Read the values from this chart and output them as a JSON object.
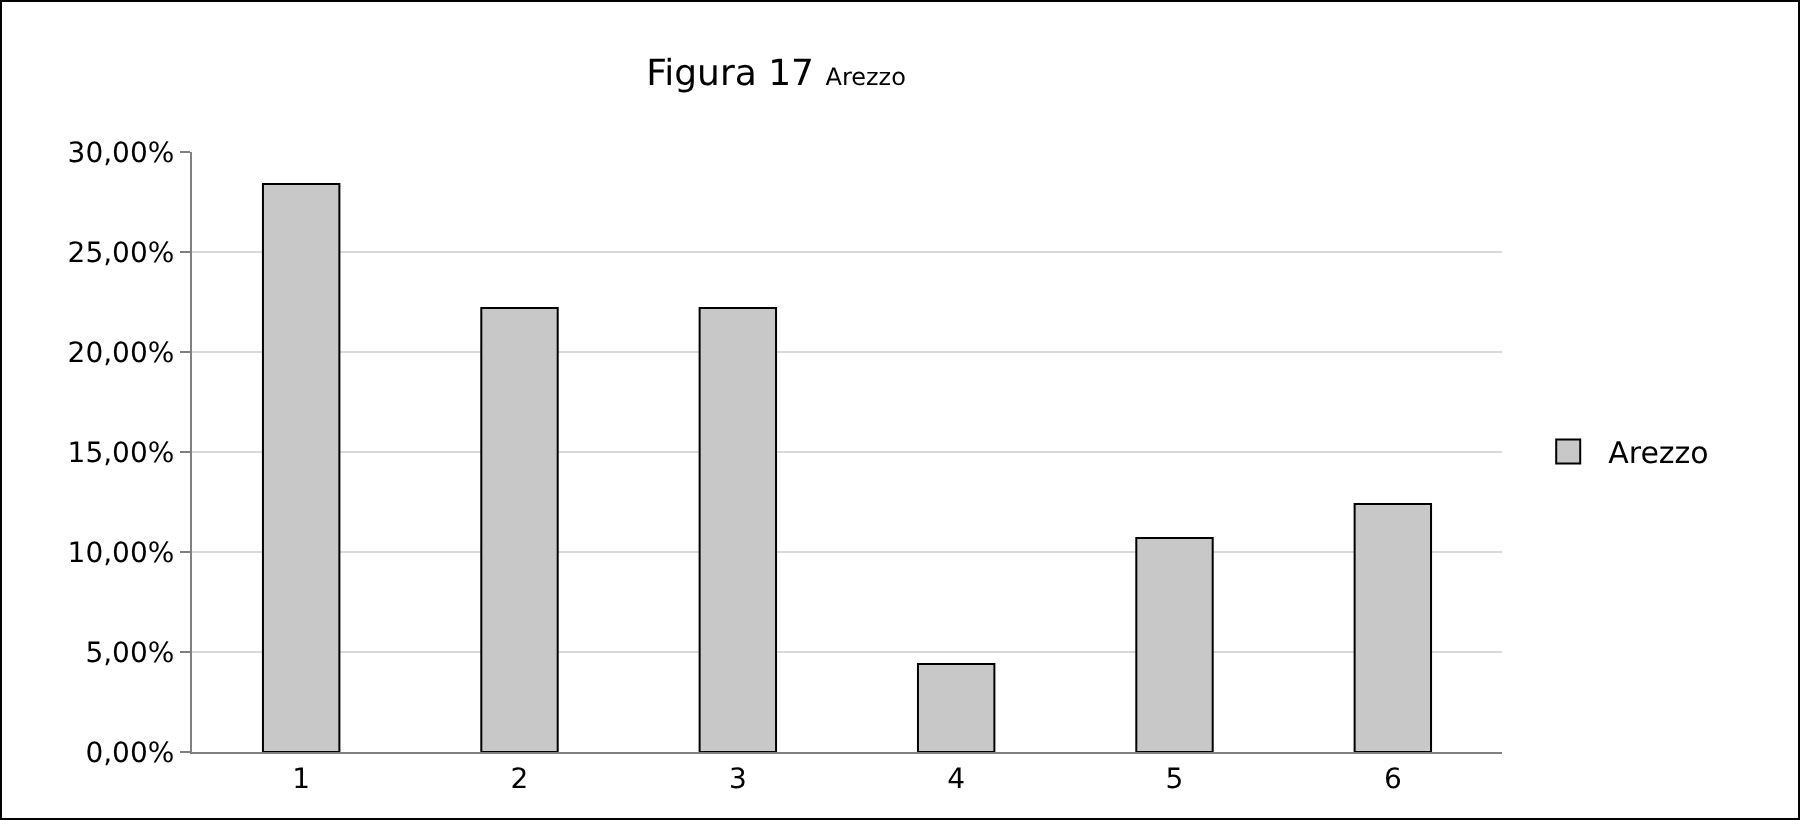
{
  "chart_data": {
    "type": "bar",
    "title": "Figura 17",
    "subtitle": "Arezzo",
    "categories": [
      "1",
      "2",
      "3",
      "4",
      "5",
      "6"
    ],
    "series": [
      {
        "name": "Arezzo",
        "color": "#c8c8c8",
        "values": [
          28.4,
          22.2,
          22.2,
          4.4,
          10.7,
          12.4
        ]
      }
    ],
    "ylim": [
      0,
      30
    ],
    "yticks": [
      {
        "value": 0,
        "label": "0,00%"
      },
      {
        "value": 5,
        "label": "5,00%"
      },
      {
        "value": 10,
        "label": "10,00%"
      },
      {
        "value": 15,
        "label": "15,00%"
      },
      {
        "value": 20,
        "label": "20,00%"
      },
      {
        "value": 25,
        "label": "25,00%"
      },
      {
        "value": 30,
        "label": "30,00%"
      }
    ],
    "grid": "y",
    "legend": "right"
  }
}
